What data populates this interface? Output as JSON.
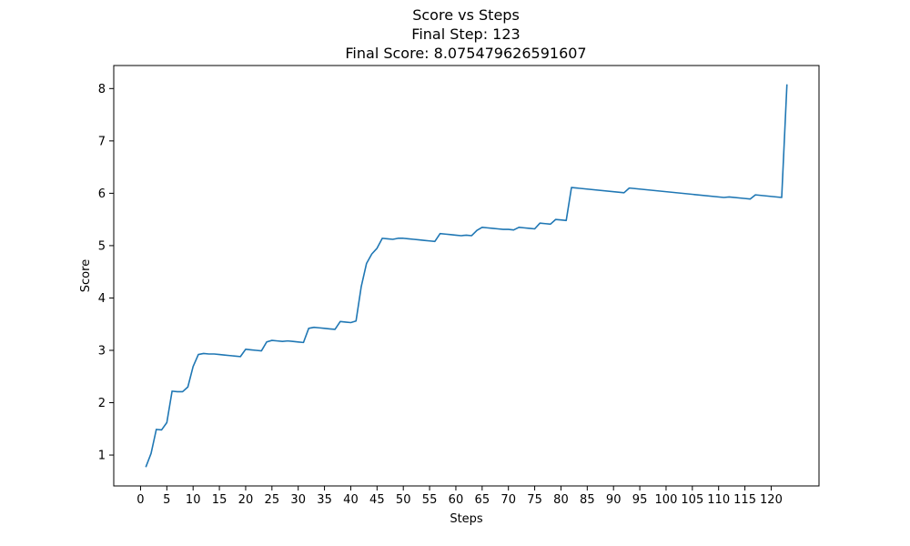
{
  "chart_data": {
    "type": "line",
    "title_lines": [
      "Score vs Steps",
      "Final Step: 123",
      "Final Score: 8.075479626591607"
    ],
    "xlabel": "Steps",
    "ylabel": "Score",
    "xticks": [
      0,
      5,
      10,
      15,
      20,
      25,
      30,
      35,
      40,
      45,
      50,
      55,
      60,
      65,
      70,
      75,
      80,
      85,
      90,
      95,
      100,
      105,
      110,
      115,
      120
    ],
    "yticks": [
      1,
      2,
      3,
      4,
      5,
      6,
      7,
      8
    ],
    "xlim": [
      -5.1,
      129.1
    ],
    "ylim": [
      0.41,
      8.44
    ],
    "grid": false,
    "line_color": "#1f77b4",
    "series": [
      {
        "x": [
          1,
          2,
          3,
          4,
          5,
          6,
          7,
          8,
          9,
          10,
          11,
          12,
          13,
          14,
          15,
          16,
          17,
          18,
          19,
          20,
          21,
          22,
          23,
          24,
          25,
          26,
          27,
          28,
          29,
          30,
          31,
          32,
          33,
          34,
          35,
          36,
          37,
          38,
          39,
          40,
          41,
          42,
          43,
          44,
          45,
          46,
          47,
          48,
          49,
          50,
          51,
          52,
          53,
          54,
          55,
          56,
          57,
          58,
          59,
          60,
          61,
          62,
          63,
          64,
          65,
          66,
          67,
          68,
          69,
          70,
          71,
          72,
          73,
          74,
          75,
          76,
          77,
          78,
          79,
          80,
          81,
          82,
          92,
          93,
          111,
          112,
          115,
          116,
          117,
          122,
          123
        ],
        "y": [
          0.77,
          1.03,
          1.49,
          1.48,
          1.62,
          2.22,
          2.21,
          2.21,
          2.3,
          2.69,
          2.92,
          2.94,
          2.93,
          2.93,
          2.92,
          2.91,
          2.9,
          2.89,
          2.88,
          3.02,
          3.01,
          3.0,
          2.99,
          3.16,
          3.19,
          3.18,
          3.17,
          3.18,
          3.17,
          3.16,
          3.15,
          3.42,
          3.44,
          3.43,
          3.42,
          3.41,
          3.4,
          3.55,
          3.54,
          3.53,
          3.56,
          4.22,
          4.66,
          4.84,
          4.95,
          5.14,
          5.13,
          5.12,
          5.14,
          5.14,
          5.13,
          5.12,
          5.11,
          5.1,
          5.09,
          5.08,
          5.23,
          5.22,
          5.21,
          5.2,
          5.19,
          5.2,
          5.19,
          5.29,
          5.35,
          5.34,
          5.33,
          5.32,
          5.31,
          5.31,
          5.3,
          5.35,
          5.34,
          5.33,
          5.32,
          5.43,
          5.42,
          5.41,
          5.5,
          5.49,
          5.48,
          6.11,
          6.01,
          6.1,
          5.92,
          5.93,
          5.9,
          5.89,
          5.97,
          5.92,
          8.08
        ]
      }
    ]
  }
}
